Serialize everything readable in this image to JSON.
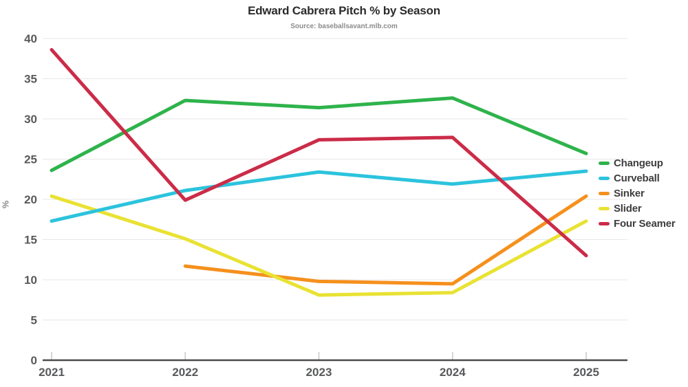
{
  "page": {
    "title": "Edward Cabrera Pitch % by Season",
    "subtitle": "Source: baseballsavant.mlb.com"
  },
  "colors": {
    "background": "#ffffff",
    "gridline": "#e7e7e7",
    "axis_line": "#4b4b4b",
    "tick_mark": "#c9c9c9",
    "tick_label": "#58595b",
    "title_text": "#2b2b2b",
    "subtitle_text": "#8b8b8b",
    "legend_text": "#3d3d3d"
  },
  "chart_data": {
    "type": "line",
    "title": "Edward Cabrera Pitch % by Season",
    "subtitle": "Source: baseballsavant.mlb.com",
    "xlabel": "",
    "ylabel": "%",
    "x": [
      "2021",
      "2022",
      "2023",
      "2024",
      "2025"
    ],
    "ylim": [
      0,
      40
    ],
    "ytick_interval": 5,
    "yticks": [
      0,
      5,
      10,
      15,
      20,
      25,
      30,
      35,
      40
    ],
    "grid": "horizontal",
    "legend_position": "right",
    "line_width": 5,
    "series": [
      {
        "name": "Changeup",
        "color": "#2eb34b",
        "values": [
          23.6,
          32.3,
          31.4,
          32.6,
          25.7
        ]
      },
      {
        "name": "Curveball",
        "color": "#2cc3dd",
        "values": [
          17.3,
          21.1,
          23.4,
          21.9,
          23.5
        ]
      },
      {
        "name": "Sinker",
        "color": "#f5901d",
        "values": [
          null,
          11.7,
          9.8,
          9.5,
          20.4
        ]
      },
      {
        "name": "Slider",
        "color": "#e9e233",
        "values": [
          20.4,
          15.1,
          8.1,
          8.4,
          17.3
        ]
      },
      {
        "name": "Four Seamer",
        "color": "#cb2c48",
        "values": [
          38.6,
          19.9,
          27.4,
          27.7,
          13.0
        ]
      }
    ],
    "draw_order": [
      "Sinker",
      "Slider",
      "Curveball",
      "Changeup",
      "Four Seamer"
    ]
  }
}
